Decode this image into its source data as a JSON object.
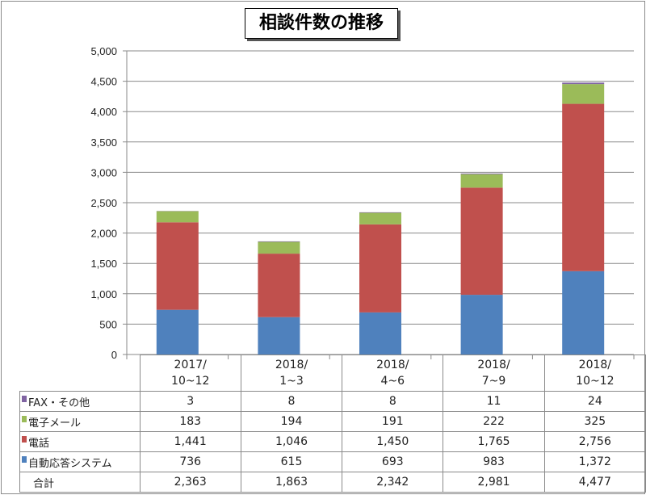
{
  "chart_data": {
    "type": "bar",
    "stacked": true,
    "title": "相談件数の推移",
    "categories": [
      "2017/\n10~12",
      "2018/\n1~3",
      "2018/\n4~6",
      "2018/\n7~9",
      "2018/\n10~12"
    ],
    "category_lines": [
      [
        "2017/",
        "10~12"
      ],
      [
        "2018/",
        "1~3"
      ],
      [
        "2018/",
        "4~6"
      ],
      [
        "2018/",
        "7~9"
      ],
      [
        "2018/",
        "10~12"
      ]
    ],
    "series": [
      {
        "name": "自動応答システム",
        "color": "#4f81bd",
        "values": [
          736,
          615,
          693,
          983,
          1372
        ],
        "labels": [
          "736",
          "615",
          "693",
          "983",
          "1,372"
        ]
      },
      {
        "name": "電話",
        "color": "#c0504d",
        "values": [
          1441,
          1046,
          1450,
          1765,
          2756
        ],
        "labels": [
          "1,441",
          "1,046",
          "1,450",
          "1,765",
          "2,756"
        ]
      },
      {
        "name": "電子メール",
        "color": "#9bbb59",
        "values": [
          183,
          194,
          191,
          222,
          325
        ],
        "labels": [
          "183",
          "194",
          "191",
          "222",
          "325"
        ]
      },
      {
        "name": "FAX・その他",
        "color": "#8064a2",
        "values": [
          3,
          8,
          8,
          11,
          24
        ],
        "labels": [
          "3",
          "8",
          "8",
          "11",
          "24"
        ]
      }
    ],
    "totals": {
      "name": "合計",
      "values": [
        2363,
        1863,
        2342,
        2981,
        4477
      ],
      "labels": [
        "2,363",
        "1,863",
        "2,342",
        "2,981",
        "4,477"
      ]
    },
    "ylim": [
      0,
      5000
    ],
    "yticks": [
      0,
      500,
      1000,
      1500,
      2000,
      2500,
      3000,
      3500,
      4000,
      4500,
      5000
    ],
    "ytick_labels": [
      "0",
      "500",
      "1,000",
      "1,500",
      "2,000",
      "2,500",
      "3,000",
      "3,500",
      "4,000",
      "4,500",
      "5,000"
    ],
    "grid": true,
    "legend": "data-table"
  }
}
